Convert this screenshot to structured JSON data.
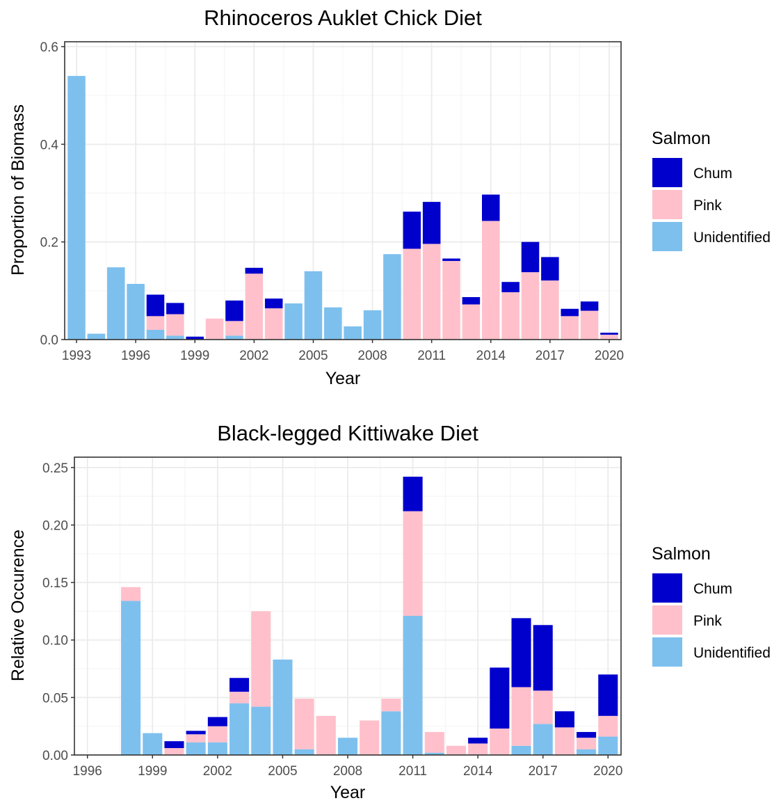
{
  "colors": {
    "Chum": "#0000CD",
    "Pink": "#FFC0CB",
    "Unidentified": "#7DC0EE",
    "panel_border": "#333333",
    "grid_major": "#EBEBEB",
    "grid_minor": "#F5F5F5",
    "tick_label": "#4D4D4D"
  },
  "legend_placement": "right",
  "chart_data": [
    {
      "type": "bar",
      "stacked": true,
      "title": "Rhinoceros Auklet Chick Diet",
      "xlabel": "Year",
      "ylabel": "Proportion of Biomass",
      "ylim": [
        0,
        0.61
      ],
      "xlim": [
        1992.4,
        2020.6
      ],
      "yticks": [
        0.0,
        0.2,
        0.4,
        0.6
      ],
      "ytick_labels": [
        "0.0",
        "0.2",
        "0.4",
        "0.6"
      ],
      "xticks": [
        1993,
        1996,
        1999,
        2002,
        2005,
        2008,
        2011,
        2014,
        2017,
        2020
      ],
      "xtick_labels": [
        "1993",
        "1996",
        "1999",
        "2002",
        "2005",
        "2008",
        "2011",
        "2014",
        "2017",
        "2020"
      ],
      "grid": true,
      "legend_title": "Salmon",
      "legend_entries": [
        "Chum",
        "Pink",
        "Unidentified"
      ],
      "categories": [
        1993,
        1994,
        1995,
        1996,
        1997,
        1998,
        1999,
        2000,
        2001,
        2002,
        2003,
        2004,
        2005,
        2006,
        2007,
        2008,
        2009,
        2010,
        2011,
        2012,
        2013,
        2014,
        2015,
        2016,
        2017,
        2018,
        2019,
        2020
      ],
      "series": [
        {
          "name": "Unidentified",
          "values": [
            0.54,
            0.012,
            0.148,
            0.114,
            0.02,
            0.008,
            0.0,
            0.0,
            0.008,
            0.0,
            0.0,
            0.074,
            0.14,
            0.066,
            0.027,
            0.06,
            0.175,
            0.0,
            0.0,
            0.0,
            0.0,
            0.0,
            0.0,
            0.0,
            0.0,
            0.0,
            0.0,
            0.0
          ]
        },
        {
          "name": "Pink",
          "values": [
            0.0,
            0.0,
            0.0,
            0.0,
            0.028,
            0.044,
            0.0,
            0.043,
            0.03,
            0.135,
            0.064,
            0.0,
            0.0,
            0.0,
            0.0,
            0.0,
            0.0,
            0.186,
            0.196,
            0.161,
            0.072,
            0.243,
            0.097,
            0.138,
            0.121,
            0.048,
            0.059,
            0.01
          ]
        },
        {
          "name": "Chum",
          "values": [
            0.0,
            0.0,
            0.0,
            0.0,
            0.044,
            0.023,
            0.006,
            0.0,
            0.042,
            0.012,
            0.02,
            0.0,
            0.0,
            0.0,
            0.0,
            0.0,
            0.0,
            0.076,
            0.086,
            0.005,
            0.015,
            0.054,
            0.021,
            0.062,
            0.048,
            0.015,
            0.019,
            0.004
          ]
        }
      ]
    },
    {
      "type": "bar",
      "stacked": true,
      "title": "Black-legged Kittiwake Diet",
      "xlabel": "Year",
      "ylabel": "Relative Occurence",
      "ylim": [
        0,
        0.259
      ],
      "xlim": [
        1995.4,
        2020.6
      ],
      "yticks": [
        0.0,
        0.05,
        0.1,
        0.15,
        0.2,
        0.25
      ],
      "ytick_labels": [
        "0.00",
        "0.05",
        "0.10",
        "0.15",
        "0.20",
        "0.25"
      ],
      "xticks": [
        1996,
        1999,
        2002,
        2005,
        2008,
        2011,
        2014,
        2017,
        2020
      ],
      "xtick_labels": [
        "1996",
        "1999",
        "2002",
        "2005",
        "2008",
        "2011",
        "2014",
        "2017",
        "2020"
      ],
      "grid": true,
      "legend_title": "Salmon",
      "legend_entries": [
        "Chum",
        "Pink",
        "Unidentified"
      ],
      "categories": [
        1996,
        1997,
        1998,
        1999,
        2000,
        2001,
        2002,
        2003,
        2004,
        2005,
        2006,
        2007,
        2008,
        2009,
        2010,
        2011,
        2012,
        2013,
        2014,
        2015,
        2016,
        2017,
        2018,
        2019,
        2020
      ],
      "series": [
        {
          "name": "Unidentified",
          "values": [
            0.0,
            0.0,
            0.134,
            0.019,
            0.0,
            0.011,
            0.011,
            0.045,
            0.042,
            0.083,
            0.005,
            0.0,
            0.015,
            0.0,
            0.038,
            0.121,
            0.002,
            0.0,
            0.0,
            0.0,
            0.008,
            0.027,
            0.0,
            0.005,
            0.016
          ]
        },
        {
          "name": "Pink",
          "values": [
            0.0,
            0.0,
            0.012,
            0.0,
            0.006,
            0.007,
            0.014,
            0.01,
            0.083,
            0.0,
            0.044,
            0.034,
            0.0,
            0.03,
            0.011,
            0.091,
            0.018,
            0.008,
            0.01,
            0.023,
            0.051,
            0.029,
            0.024,
            0.01,
            0.018
          ]
        },
        {
          "name": "Chum",
          "values": [
            0.0,
            0.0,
            0.0,
            0.0,
            0.006,
            0.003,
            0.008,
            0.012,
            0.0,
            0.0,
            0.0,
            0.0,
            0.0,
            0.0,
            0.0,
            0.03,
            0.0,
            0.0,
            0.005,
            0.053,
            0.06,
            0.057,
            0.014,
            0.005,
            0.036
          ]
        }
      ]
    }
  ]
}
